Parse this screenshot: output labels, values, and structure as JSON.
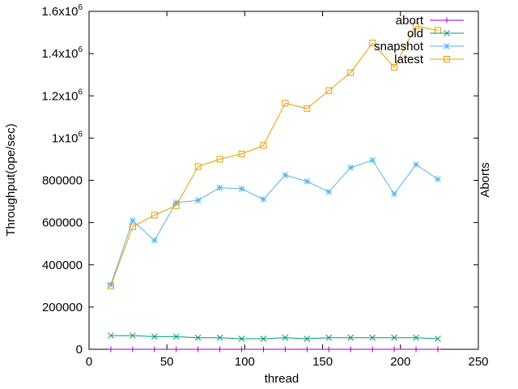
{
  "chart_data": {
    "type": "line",
    "xlabel": "thread",
    "ylabel": "Throughput(ope/sec)",
    "y2label": "Aborts",
    "xlim": [
      0,
      250
    ],
    "ylim": [
      0,
      1600000
    ],
    "x_ticks": [
      0,
      50,
      100,
      150,
      200,
      250
    ],
    "y_ticks": [
      {
        "value": 0,
        "label": "0",
        "sup": ""
      },
      {
        "value": 200000,
        "label": "200000",
        "sup": ""
      },
      {
        "value": 400000,
        "label": "400000",
        "sup": ""
      },
      {
        "value": 600000,
        "label": "600000",
        "sup": ""
      },
      {
        "value": 800000,
        "label": "800000",
        "sup": ""
      },
      {
        "value": 1000000,
        "label": "1x10",
        "sup": "6"
      },
      {
        "value": 1200000,
        "label": "1.2x10",
        "sup": "6"
      },
      {
        "value": 1400000,
        "label": "1.4x10",
        "sup": "6"
      },
      {
        "value": 1600000,
        "label": "1.6x10",
        "sup": "6"
      }
    ],
    "grid": false,
    "legend_position": "top-right",
    "x": [
      14,
      28,
      42,
      56,
      70,
      84,
      98,
      112,
      126,
      140,
      154,
      168,
      182,
      196,
      210,
      224
    ],
    "series": [
      {
        "name": "abort",
        "color": "#9400d3",
        "marker": "plus",
        "values": [
          0,
          0,
          0,
          0,
          0,
          0,
          0,
          0,
          0,
          0,
          0,
          0,
          0,
          0,
          0,
          0
        ]
      },
      {
        "name": "old",
        "color": "#009e73",
        "marker": "cross",
        "values": [
          65000,
          65000,
          60000,
          60000,
          55000,
          55000,
          50000,
          50000,
          55000,
          50000,
          55000,
          55000,
          55000,
          55000,
          55000,
          50000
        ]
      },
      {
        "name": "snapshot",
        "color": "#56b4e9",
        "marker": "star",
        "values": [
          305000,
          610000,
          515000,
          695000,
          705000,
          765000,
          760000,
          710000,
          825000,
          795000,
          745000,
          860000,
          895000,
          735000,
          875000,
          805000
        ]
      },
      {
        "name": "latest",
        "color": "#e69f00",
        "marker": "square",
        "values": [
          300000,
          580000,
          635000,
          680000,
          865000,
          900000,
          925000,
          965000,
          1165000,
          1140000,
          1225000,
          1310000,
          1450000,
          1335000,
          1530000,
          1510000
        ]
      }
    ]
  }
}
